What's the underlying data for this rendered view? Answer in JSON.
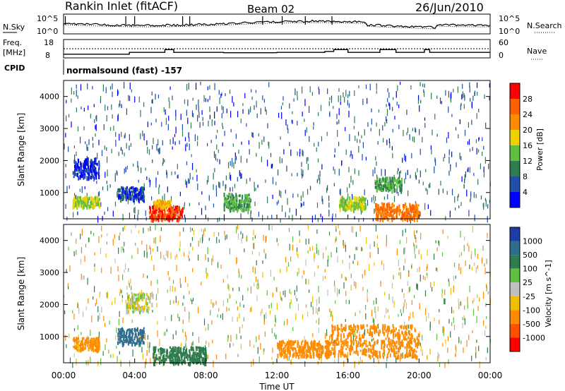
{
  "header": {
    "station": "Rankin Inlet (fitACF)",
    "beam": "Beam 02",
    "date": "26/Jun/2010"
  },
  "strip": {
    "nsky_label": "N.Sky",
    "nsky_ticks": [
      "10^5",
      "10^0"
    ],
    "nsearch_label": "N.Search",
    "nsearch_ticks": [
      "10^5",
      "10^0"
    ],
    "freq_label": "Freq.",
    "freq_unit": "[MHz]",
    "freq_ticks": [
      "18",
      "8"
    ],
    "nave_label": "Nave",
    "nave_ticks": [
      "60",
      "0"
    ],
    "cpid_label": "CPID",
    "cpid_text": "normalsound (fast) -157"
  },
  "power_panel": {
    "ylabel": "Slant Range [km]",
    "ytick_labels": [
      "1000",
      "2000",
      "3000",
      "4000"
    ],
    "colorbar_label": "Power [dB]",
    "colorbar_ticks": [
      "4",
      "8",
      "12",
      "16",
      "20",
      "24",
      "28"
    ],
    "colors": [
      "#0000ff",
      "#1f4fa8",
      "#2e7d4f",
      "#5fc040",
      "#f0d000",
      "#ff8c00",
      "#ff6000",
      "#ff0000"
    ]
  },
  "velocity_panel": {
    "ylabel": "Slant Range [km]",
    "ytick_labels": [
      "1000",
      "2000",
      "3000",
      "4000"
    ],
    "colorbar_label": "Velocity [m s^-1]",
    "colorbar_ticks": [
      "1000",
      "500",
      "100",
      "25",
      "-25",
      "-100",
      "-500",
      "-1000"
    ],
    "colors": [
      "#1e3ca8",
      "#2e6e8c",
      "#2e7d4f",
      "#60c040",
      "#c0c0c0",
      "#f0c000",
      "#ff8c00",
      "#ff5000",
      "#ff0000"
    ]
  },
  "xaxis": {
    "tick_labels": [
      "00:00",
      "04:00",
      "08:00",
      "12:00",
      "16:00",
      "20:00",
      "00:00"
    ],
    "xlabel": "Time UT"
  },
  "chart_data": [
    {
      "type": "line",
      "title": "N.Sky / N.Search",
      "x_range": [
        "00:00",
        "24:00"
      ],
      "yscale": "log",
      "ylim": [
        1,
        100000
      ]
    },
    {
      "type": "line",
      "title": "Freq. / Nave",
      "x": [
        0,
        3.3,
        3.7,
        5.7,
        6.2,
        8.0,
        8.3,
        9.0,
        12.0,
        14.3,
        14.7,
        15.2,
        16.0,
        17.8,
        18.7,
        20.3,
        20.6,
        22.0,
        24.0
      ],
      "freq_mhz": [
        10.0,
        10.0,
        11.0,
        12.5,
        11.0,
        11.0,
        11.0,
        10.8,
        11.0,
        11.0,
        11.5,
        12.5,
        11.0,
        12.5,
        11.0,
        12.5,
        11.0,
        11.0,
        11.0
      ],
      "nave_ylim": [
        0,
        60
      ],
      "freq_ylim": [
        8,
        18
      ]
    },
    {
      "type": "heatmap",
      "title": "Power [dB]",
      "xlabel": "Time UT",
      "ylabel": "Slant Range [km]",
      "ylim": [
        180,
        4500
      ],
      "color_scale": [
        4,
        8,
        12,
        16,
        20,
        24,
        28
      ],
      "regions": [
        {
          "t0": 0.5,
          "t1": 2.0,
          "r0": 1500,
          "r1": 2100,
          "value": 6
        },
        {
          "t0": 0.5,
          "t1": 2.0,
          "r0": 600,
          "r1": 900,
          "value": 18
        },
        {
          "t0": 3.0,
          "t1": 4.5,
          "r0": 800,
          "r1": 1200,
          "value": 8
        },
        {
          "t0": 4.8,
          "t1": 6.7,
          "r0": 200,
          "r1": 600,
          "value": 30
        },
        {
          "t0": 5.0,
          "t1": 6.0,
          "r0": 600,
          "r1": 800,
          "value": 22
        },
        {
          "t0": 9.0,
          "t1": 10.5,
          "r0": 500,
          "r1": 1000,
          "value": 14
        },
        {
          "t0": 15.5,
          "t1": 17.0,
          "r0": 500,
          "r1": 900,
          "value": 18
        },
        {
          "t0": 17.5,
          "t1": 20.0,
          "r0": 200,
          "r1": 700,
          "value": 26
        },
        {
          "t0": 17.5,
          "t1": 19.0,
          "r0": 1100,
          "r1": 1500,
          "value": 14
        }
      ]
    },
    {
      "type": "heatmap",
      "title": "Velocity [m s^-1]",
      "xlabel": "Time UT",
      "ylabel": "Slant Range [km]",
      "ylim": [
        180,
        4500
      ],
      "color_scale": [
        1000,
        500,
        100,
        25,
        -25,
        -100,
        -500,
        -1000
      ],
      "regions": [
        {
          "t0": 0.5,
          "t1": 2.0,
          "r0": 600,
          "r1": 1000,
          "value": -150
        },
        {
          "t0": 3.0,
          "t1": 4.5,
          "r0": 800,
          "r1": 1300,
          "value": 900
        },
        {
          "t0": 3.5,
          "t1": 5.0,
          "r0": 1800,
          "r1": 2400,
          "value": 0
        },
        {
          "t0": 5.0,
          "t1": 8.0,
          "r0": 200,
          "r1": 700,
          "value": 200
        },
        {
          "t0": 15.0,
          "t1": 20.0,
          "r0": 400,
          "r1": 1400,
          "value": -300
        },
        {
          "t0": 12.0,
          "t1": 15.0,
          "r0": 400,
          "r1": 900,
          "value": -300
        }
      ]
    }
  ]
}
